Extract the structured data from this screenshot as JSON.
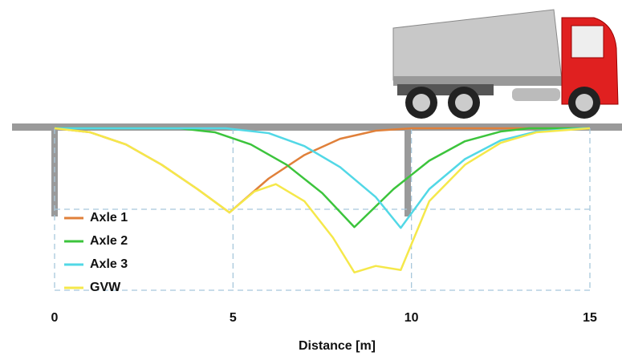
{
  "chart_data": {
    "type": "line",
    "xlabel": "Distance [m]",
    "xlim": [
      0,
      15
    ],
    "xticks": [
      0,
      5,
      10,
      15
    ],
    "ylim": [
      -2.0,
      0.0
    ],
    "ygrid": [
      -1,
      -2
    ],
    "grid": true,
    "series": [
      {
        "name": "Axle 1",
        "color": "#e0803a",
        "x": [
          0,
          1,
          2,
          3,
          4,
          4.9,
          6,
          7,
          8,
          9,
          10,
          15
        ],
        "values": [
          0,
          -0.05,
          -0.2,
          -0.45,
          -0.75,
          -1.04,
          -0.62,
          -0.33,
          -0.13,
          -0.03,
          0,
          0
        ]
      },
      {
        "name": "Axle 2",
        "color": "#3cc43c",
        "x": [
          0,
          3.5,
          4.5,
          5.5,
          6.5,
          7.5,
          8.4,
          9.5,
          10.5,
          11.5,
          12.5,
          13.3,
          15
        ],
        "values": [
          0,
          0,
          -0.05,
          -0.2,
          -0.45,
          -0.8,
          -1.22,
          -0.75,
          -0.4,
          -0.16,
          -0.04,
          0,
          0
        ]
      },
      {
        "name": "Axle 3",
        "color": "#52d8e6",
        "x": [
          0,
          4.8,
          6,
          7,
          8,
          9,
          9.7,
          10.5,
          11.5,
          12.5,
          13.5,
          14.8,
          15
        ],
        "values": [
          0,
          0,
          -0.06,
          -0.22,
          -0.48,
          -0.85,
          -1.23,
          -0.75,
          -0.38,
          -0.15,
          -0.04,
          0,
          0
        ]
      },
      {
        "name": "GVW",
        "color": "#f5e84a",
        "x": [
          0,
          1,
          2,
          3,
          4,
          4.9,
          5.6,
          6.2,
          7,
          7.8,
          8.4,
          9,
          9.7,
          10.5,
          11.5,
          12.5,
          13.5,
          15
        ],
        "values": [
          0,
          -0.05,
          -0.2,
          -0.45,
          -0.75,
          -1.04,
          -0.78,
          -0.69,
          -0.9,
          -1.35,
          -1.78,
          -1.7,
          -1.75,
          -0.9,
          -0.45,
          -0.18,
          -0.05,
          0
        ]
      }
    ]
  }
}
